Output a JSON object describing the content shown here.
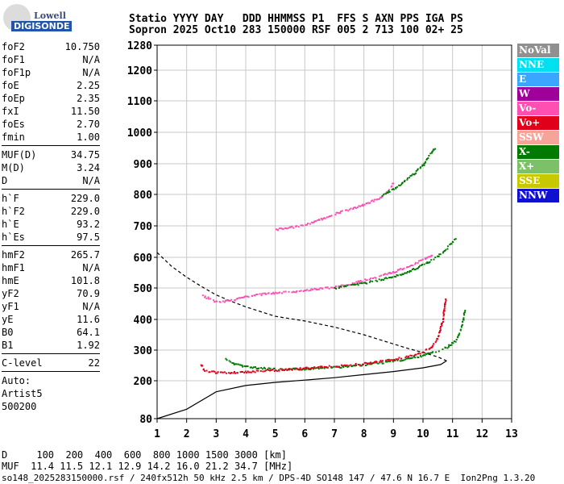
{
  "header": {
    "line1": "Statio YYYY DAY   DDD HHMMSS P1  FFS S AXN PPS IGA PS",
    "line2": "Sopron 2025 Oct10 283 150000 RSF 005 2 713 100 02+ 25"
  },
  "logo": {
    "top": "Lowell",
    "bottom": "DIGISONDE"
  },
  "params": {
    "group1": [
      {
        "k": "foF2",
        "v": "10.750"
      },
      {
        "k": "foF1",
        "v": "N/A"
      },
      {
        "k": "foF1p",
        "v": "N/A"
      },
      {
        "k": "foE",
        "v": "2.25"
      },
      {
        "k": "foEp",
        "v": "2.35"
      },
      {
        "k": "fxI",
        "v": "11.50"
      },
      {
        "k": "foEs",
        "v": "2.70"
      },
      {
        "k": "fmin",
        "v": "1.00"
      }
    ],
    "group2": [
      {
        "k": "MUF(D)",
        "v": "34.75"
      },
      {
        "k": "M(D)",
        "v": "3.24"
      },
      {
        "k": "D",
        "v": "N/A"
      }
    ],
    "group3": [
      {
        "k": "h`F",
        "v": "229.0"
      },
      {
        "k": "h`F2",
        "v": "229.0"
      },
      {
        "k": "h`E",
        "v": "93.2"
      },
      {
        "k": "h`Es",
        "v": "97.5"
      }
    ],
    "group4": [
      {
        "k": "hmF2",
        "v": "265.7"
      },
      {
        "k": "hmF1",
        "v": "N/A"
      },
      {
        "k": "hmE",
        "v": "101.8"
      },
      {
        "k": "yF2",
        "v": "70.9"
      },
      {
        "k": "yF1",
        "v": "N/A"
      },
      {
        "k": "yE",
        "v": "11.6"
      },
      {
        "k": "B0",
        "v": "64.1"
      },
      {
        "k": "B1",
        "v": "1.92"
      }
    ],
    "group5": [
      {
        "k": "C-level",
        "v": "22"
      }
    ],
    "auto": [
      "Auto:",
      "Artist5",
      "500200"
    ]
  },
  "legend": [
    {
      "label": "NoVal",
      "color": "#909090"
    },
    {
      "label": "NNE",
      "color": "#00e0f0"
    },
    {
      "label": "E",
      "color": "#3aa6ff"
    },
    {
      "label": "W",
      "color": "#a0009a"
    },
    {
      "label": "Vo-",
      "color": "#ff4fb2"
    },
    {
      "label": "Vo+",
      "color": "#e0001a"
    },
    {
      "label": "SSW",
      "color": "#f5a49a"
    },
    {
      "label": "X-",
      "color": "#007a00"
    },
    {
      "label": "X+",
      "color": "#7cc06a"
    },
    {
      "label": "SSE",
      "color": "#c8c800"
    },
    {
      "label": "NNW",
      "color": "#1010d0"
    }
  ],
  "footer": {
    "line1": "D     100  200  400  600  800 1000 1500 3000 [km]",
    "line2": "MUF  11.4 11.5 12.1 12.9 14.2 16.0 21.2 34.7 [MHz]",
    "line3": "so148_2025283150000.rsf / 240fx512h 50 kHz 2.5 km / DPS-4D SO148 147 / 47.6 N 16.7 E  Ion2Png 1.3.20"
  },
  "chart_data": {
    "type": "scatter",
    "xlim": [
      1,
      13
    ],
    "ylim": [
      80,
      1280
    ],
    "x_ticks": [
      "1",
      "2",
      "3",
      "4",
      "5",
      "6",
      "7",
      "8",
      "9",
      "10",
      "11",
      "12",
      "13"
    ],
    "y_ticks": [
      "80",
      "200",
      "300",
      "400",
      "500",
      "600",
      "700",
      "800",
      "900",
      "1000",
      "1100",
      "1200",
      "1280"
    ],
    "grid": true,
    "series": [
      {
        "name": "X-",
        "color": "#007a00",
        "points": [
          [
            3.3,
            272
          ],
          [
            3.6,
            258
          ],
          [
            4.0,
            248
          ],
          [
            4.5,
            243
          ],
          [
            5.0,
            240
          ],
          [
            5.5,
            240
          ],
          [
            6.0,
            241
          ],
          [
            6.5,
            243
          ],
          [
            7.0,
            246
          ],
          [
            7.5,
            250
          ],
          [
            8.0,
            255
          ],
          [
            8.5,
            260
          ],
          [
            9.0,
            266
          ],
          [
            9.5,
            274
          ],
          [
            10.0,
            285
          ],
          [
            10.4,
            297
          ],
          [
            10.8,
            312
          ],
          [
            11.1,
            335
          ],
          [
            11.3,
            380
          ],
          [
            11.4,
            435
          ]
        ]
      },
      {
        "name": "Vo+",
        "color": "#e0001a",
        "points": [
          [
            2.45,
            255
          ],
          [
            2.6,
            234
          ],
          [
            3.0,
            229
          ],
          [
            3.5,
            229
          ],
          [
            4.0,
            231
          ],
          [
            4.5,
            234
          ],
          [
            5.0,
            237
          ],
          [
            5.5,
            240
          ],
          [
            6.0,
            243
          ],
          [
            6.5,
            246
          ],
          [
            7.0,
            250
          ],
          [
            7.5,
            254
          ],
          [
            8.0,
            259
          ],
          [
            8.5,
            265
          ],
          [
            9.0,
            272
          ],
          [
            9.5,
            282
          ],
          [
            10.0,
            297
          ],
          [
            10.3,
            315
          ],
          [
            10.5,
            345
          ],
          [
            10.65,
            400
          ],
          [
            10.75,
            470
          ]
        ]
      },
      {
        "name": "Vo-",
        "color": "#ff4fb2",
        "points": [
          [
            2.5,
            478
          ],
          [
            3.0,
            458
          ],
          [
            3.5,
            463
          ],
          [
            4.0,
            475
          ],
          [
            4.5,
            482
          ],
          [
            5.0,
            486
          ],
          [
            5.5,
            490
          ],
          [
            6.0,
            495
          ],
          [
            6.5,
            500
          ],
          [
            7.0,
            505
          ],
          [
            7.5,
            515
          ],
          [
            8.0,
            528
          ],
          [
            8.5,
            540
          ],
          [
            9.0,
            555
          ],
          [
            9.5,
            572
          ],
          [
            10.0,
            595
          ],
          [
            10.3,
            612
          ]
        ]
      },
      {
        "name": "X-",
        "color": "#007a00",
        "points": [
          [
            7.0,
            502
          ],
          [
            7.5,
            510
          ],
          [
            8.0,
            518
          ],
          [
            8.5,
            528
          ],
          [
            9.0,
            540
          ],
          [
            9.5,
            556
          ],
          [
            10.0,
            578
          ],
          [
            10.4,
            600
          ],
          [
            10.8,
            632
          ],
          [
            11.1,
            665
          ]
        ]
      },
      {
        "name": "Vo-",
        "color": "#ff4fb2",
        "points": [
          [
            5.0,
            690
          ],
          [
            6.0,
            705
          ],
          [
            7.0,
            740
          ],
          [
            8.0,
            770
          ],
          [
            8.5,
            790
          ],
          [
            8.8,
            815
          ],
          [
            9.0,
            842
          ]
        ]
      },
      {
        "name": "X-",
        "color": "#007a00",
        "points": [
          [
            8.6,
            800
          ],
          [
            9.0,
            820
          ],
          [
            9.5,
            855
          ],
          [
            10.0,
            900
          ],
          [
            10.4,
            955
          ]
        ]
      }
    ],
    "model_curves": [
      {
        "name": "profile",
        "style": "solid",
        "points": [
          [
            1.0,
            80
          ],
          [
            2.0,
            110
          ],
          [
            3.0,
            165
          ],
          [
            4.0,
            185
          ],
          [
            5.0,
            195
          ],
          [
            6.0,
            202
          ],
          [
            7.0,
            210
          ],
          [
            8.0,
            220
          ],
          [
            9.0,
            230
          ],
          [
            10.0,
            242
          ],
          [
            10.6,
            253
          ],
          [
            10.8,
            265
          ]
        ]
      },
      {
        "name": "profile",
        "style": "dashed",
        "points": [
          [
            1.0,
            615
          ],
          [
            1.5,
            570
          ],
          [
            2.0,
            535
          ],
          [
            2.5,
            505
          ],
          [
            3.0,
            478
          ],
          [
            3.5,
            458
          ],
          [
            4.0,
            440
          ],
          [
            5.0,
            410
          ],
          [
            6.0,
            395
          ],
          [
            7.0,
            375
          ],
          [
            8.0,
            350
          ],
          [
            9.0,
            320
          ],
          [
            9.5,
            305
          ],
          [
            10.0,
            292
          ],
          [
            10.5,
            278
          ],
          [
            10.8,
            265
          ]
        ]
      }
    ]
  }
}
